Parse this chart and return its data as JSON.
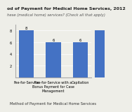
{
  "title": "od of Payment for Medical Home Services, 2012",
  "subtitle": "hese (medical home) services? (Check all that apply)",
  "categories": [
    "Fee-for-Service",
    "Fee-for-Service with a\nBonus Payment for Case\nManagement",
    "Capitation"
  ],
  "values": [
    8,
    6,
    6
  ],
  "bar_color": "#4472C4",
  "xlabel": "Method of Payment for Medical Home Services",
  "ylim": [
    0,
    9
  ],
  "yticks": [
    2,
    4,
    6,
    8
  ],
  "title_fontsize": 4.5,
  "subtitle_fontsize": 3.8,
  "xlabel_fontsize": 3.8,
  "tick_fontsize": 3.5,
  "label_fontsize": 3.8,
  "bar_width": 0.55,
  "background_color": "#eeeee8"
}
